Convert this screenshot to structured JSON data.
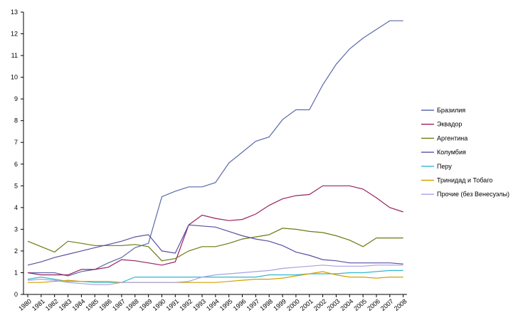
{
  "chart_data": {
    "type": "line",
    "title": "",
    "xlabel": "",
    "ylabel": "",
    "ylim": [
      0,
      13
    ],
    "yticks": [
      0,
      1,
      2,
      3,
      4,
      5,
      6,
      7,
      8,
      9,
      10,
      11,
      12,
      13
    ],
    "grid": false,
    "legend_position": "right",
    "x": [
      1980,
      1981,
      1982,
      1983,
      1984,
      1985,
      1986,
      1987,
      1988,
      1989,
      1990,
      1991,
      1992,
      1993,
      1994,
      1995,
      1996,
      1997,
      1998,
      1999,
      2000,
      2001,
      2002,
      2003,
      2004,
      2005,
      2006,
      2007,
      2008
    ],
    "series": [
      {
        "name": "Бразилия",
        "color": "#5b6aa8",
        "values": [
          1.0,
          1.0,
          1.0,
          0.85,
          1.05,
          1.15,
          1.45,
          1.7,
          2.15,
          2.35,
          4.5,
          4.75,
          4.95,
          4.95,
          5.15,
          6.05,
          6.55,
          7.05,
          7.25,
          8.05,
          8.5,
          8.5,
          9.65,
          10.6,
          11.3,
          11.8,
          12.2,
          12.6,
          12.6
        ]
      },
      {
        "name": "Эквадор",
        "color": "#9b2060",
        "values": [
          1.0,
          0.9,
          0.9,
          0.9,
          1.15,
          1.15,
          1.25,
          1.6,
          1.55,
          1.45,
          1.35,
          1.5,
          3.2,
          3.65,
          3.5,
          3.4,
          3.45,
          3.7,
          4.1,
          4.4,
          4.55,
          4.6,
          5.0,
          5.0,
          5.0,
          4.85,
          4.45,
          4.0,
          3.8
        ]
      },
      {
        "name": "Аргентина",
        "color": "#6b7a10",
        "values": [
          2.45,
          2.2,
          1.95,
          2.45,
          2.35,
          2.25,
          2.25,
          2.25,
          2.3,
          2.2,
          1.55,
          1.65,
          2.0,
          2.2,
          2.2,
          2.35,
          2.55,
          2.65,
          2.75,
          3.05,
          3.0,
          2.9,
          2.85,
          2.7,
          2.5,
          2.2,
          2.6,
          2.6,
          2.6
        ]
      },
      {
        "name": "Колумбия",
        "color": "#5a4fa0",
        "values": [
          1.35,
          1.5,
          1.7,
          1.85,
          2.0,
          2.15,
          2.3,
          2.45,
          2.65,
          2.75,
          2.0,
          1.9,
          3.2,
          3.15,
          3.1,
          2.9,
          2.7,
          2.55,
          2.45,
          2.25,
          1.95,
          1.8,
          1.6,
          1.55,
          1.45,
          1.45,
          1.45,
          1.45,
          1.4
        ]
      },
      {
        "name": "Перу",
        "color": "#30b8d0",
        "values": [
          0.7,
          0.8,
          0.7,
          0.6,
          0.6,
          0.55,
          0.55,
          0.55,
          0.8,
          0.8,
          0.8,
          0.8,
          0.8,
          0.8,
          0.8,
          0.8,
          0.8,
          0.8,
          0.9,
          0.9,
          0.9,
          0.95,
          0.95,
          0.95,
          1.0,
          1.0,
          1.05,
          1.1,
          1.1
        ]
      },
      {
        "name": "Тринидад и Тобаго",
        "color": "#d4a000",
        "values": [
          0.55,
          0.55,
          0.6,
          0.65,
          0.6,
          0.6,
          0.6,
          0.55,
          0.55,
          0.55,
          0.55,
          0.55,
          0.55,
          0.55,
          0.55,
          0.6,
          0.65,
          0.7,
          0.7,
          0.75,
          0.85,
          0.95,
          1.05,
          0.9,
          0.8,
          0.8,
          0.75,
          0.8,
          0.8
        ]
      },
      {
        "name": "Прочие (без Венесуэлы)",
        "color": "#a8a0e0",
        "values": [
          0.65,
          0.7,
          0.65,
          0.55,
          0.5,
          0.45,
          0.45,
          0.55,
          0.55,
          0.55,
          0.55,
          0.55,
          0.6,
          0.8,
          0.9,
          0.95,
          1.0,
          1.05,
          1.1,
          1.2,
          1.25,
          1.3,
          1.35,
          1.3,
          1.3,
          1.3,
          1.35,
          1.35,
          1.35
        ]
      }
    ]
  }
}
